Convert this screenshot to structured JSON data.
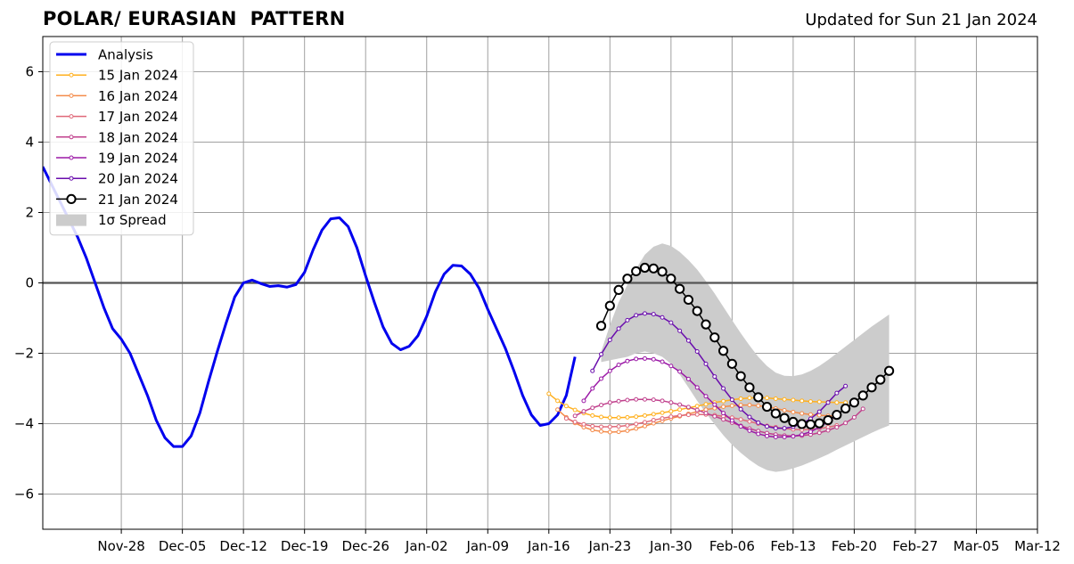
{
  "header": {
    "title": "POLAR/ EURASIAN  PATTERN",
    "subtitle": "Updated for Sun 21 Jan 2024"
  },
  "chart_data": {
    "type": "line",
    "title": "POLAR/ EURASIAN  PATTERN",
    "subtitle": "Updated for Sun 21 Jan 2024",
    "xlabel": "",
    "ylabel": "",
    "x_axis": {
      "type": "date",
      "range": [
        "2023-11-19",
        "2024-03-12"
      ],
      "ticks": [
        "2023-11-28",
        "2023-12-05",
        "2023-12-12",
        "2023-12-19",
        "2023-12-26",
        "2024-01-02",
        "2024-01-09",
        "2024-01-16",
        "2024-01-23",
        "2024-01-30",
        "2024-02-06",
        "2024-02-13",
        "2024-02-20",
        "2024-02-27",
        "2024-03-05",
        "2024-03-12"
      ],
      "tick_labels": [
        "Nov-28",
        "Dec-05",
        "Dec-12",
        "Dec-19",
        "Dec-26",
        "Jan-02",
        "Jan-09",
        "Jan-16",
        "Jan-23",
        "Jan-30",
        "Feb-06",
        "Feb-13",
        "Feb-20",
        "Feb-27",
        "Mar-05",
        "Mar-12"
      ]
    },
    "ylim": [
      -7,
      7
    ],
    "yticks": [
      -6,
      -4,
      -2,
      0,
      2,
      4,
      6
    ],
    "ytick_labels": [
      "−6",
      "−4",
      "−2",
      "0",
      "2",
      "4",
      "6"
    ],
    "grid": true,
    "zero_line": true,
    "legend_position": "top-left",
    "series": [
      {
        "name": "Analysis",
        "color": "#0000ee",
        "style": "line-thick",
        "start": "2023-11-19",
        "values": [
          3.3,
          2.8,
          2.3,
          1.8,
          1.3,
          0.7,
          0.0,
          -0.7,
          -1.3,
          -1.6,
          -2.0,
          -2.6,
          -3.2,
          -3.9,
          -4.4,
          -4.65,
          -4.65,
          -4.35,
          -3.7,
          -2.8,
          -1.95,
          -1.15,
          -0.4,
          0.0,
          0.08,
          -0.02,
          -0.1,
          -0.08,
          -0.12,
          -0.05,
          0.3,
          0.95,
          1.5,
          1.82,
          1.85,
          1.6,
          1.0,
          0.2,
          -0.55,
          -1.25,
          -1.72,
          -1.9,
          -1.8,
          -1.5,
          -0.95,
          -0.25,
          0.25,
          0.5,
          0.48,
          0.25,
          -0.15,
          -0.75,
          -1.3,
          -1.85,
          -2.5,
          -3.2,
          -3.75,
          -4.05,
          -4.0,
          -3.75,
          -3.2,
          -2.1
        ]
      },
      {
        "name": "15 Jan 2024",
        "color": "#ffb01e",
        "style": "line-small-markers",
        "start": "2024-01-16",
        "values": [
          -3.15,
          -3.35,
          -3.5,
          -3.61,
          -3.7,
          -3.77,
          -3.81,
          -3.83,
          -3.83,
          -3.82,
          -3.8,
          -3.77,
          -3.73,
          -3.69,
          -3.65,
          -3.6,
          -3.55,
          -3.5,
          -3.45,
          -3.4,
          -3.36,
          -3.32,
          -3.29,
          -3.27,
          -3.26,
          -3.27,
          -3.29,
          -3.31,
          -3.33,
          -3.35,
          -3.37,
          -3.38,
          -3.39,
          -3.4,
          -3.4
        ]
      },
      {
        "name": "16 Jan 2024",
        "color": "#f48b4a",
        "style": "line-small-markers",
        "start": "2024-01-17",
        "values": [
          -3.6,
          -3.82,
          -3.98,
          -4.1,
          -4.18,
          -4.22,
          -4.24,
          -4.23,
          -4.2,
          -4.14,
          -4.07,
          -3.99,
          -3.92,
          -3.85,
          -3.79,
          -3.72,
          -3.66,
          -3.6,
          -3.56,
          -3.52,
          -3.49,
          -3.47,
          -3.47,
          -3.49,
          -3.52,
          -3.57,
          -3.62,
          -3.67,
          -3.71,
          -3.74,
          -3.76,
          -3.78,
          -3.78
        ]
      },
      {
        "name": "17 Jan 2024",
        "color": "#e06878",
        "style": "line-small-markers",
        "start": "2024-01-18",
        "values": [
          -3.85,
          -3.95,
          -4.02,
          -4.07,
          -4.09,
          -4.09,
          -4.08,
          -4.05,
          -4.01,
          -3.96,
          -3.9,
          -3.85,
          -3.8,
          -3.77,
          -3.75,
          -3.74,
          -3.74,
          -3.76,
          -3.79,
          -3.83,
          -3.88,
          -3.94,
          -4.0,
          -4.06,
          -4.1,
          -4.14,
          -4.16,
          -4.17,
          -4.16,
          -4.14,
          -4.1,
          -4.05
        ]
      },
      {
        "name": "18 Jan 2024",
        "color": "#c0408c",
        "style": "line-small-markers",
        "start": "2024-01-19",
        "values": [
          -3.78,
          -3.65,
          -3.55,
          -3.47,
          -3.4,
          -3.36,
          -3.33,
          -3.31,
          -3.31,
          -3.32,
          -3.35,
          -3.4,
          -3.46,
          -3.53,
          -3.61,
          -3.7,
          -3.79,
          -3.88,
          -3.97,
          -4.06,
          -4.14,
          -4.21,
          -4.27,
          -4.31,
          -4.34,
          -4.35,
          -4.34,
          -4.31,
          -4.26,
          -4.19,
          -4.1,
          -3.98,
          -3.82,
          -3.58
        ]
      },
      {
        "name": "19 Jan 2024",
        "color": "#9b18a6",
        "style": "line-small-markers",
        "start": "2024-01-20",
        "values": [
          -3.35,
          -3.0,
          -2.72,
          -2.5,
          -2.33,
          -2.22,
          -2.16,
          -2.15,
          -2.17,
          -2.24,
          -2.36,
          -2.52,
          -2.73,
          -2.97,
          -3.22,
          -3.46,
          -3.7,
          -3.91,
          -4.08,
          -4.2,
          -4.29,
          -4.35,
          -4.38,
          -4.38,
          -4.36,
          -4.31,
          -4.23,
          -4.1,
          -3.95,
          -3.75
        ]
      },
      {
        "name": "20 Jan 2024",
        "color": "#6a0dad",
        "style": "line-small-markers",
        "start": "2024-01-21",
        "values": [
          -2.5,
          -2.03,
          -1.62,
          -1.3,
          -1.06,
          -0.92,
          -0.87,
          -0.89,
          -0.98,
          -1.13,
          -1.36,
          -1.64,
          -1.95,
          -2.3,
          -2.66,
          -3.0,
          -3.32,
          -3.59,
          -3.81,
          -3.97,
          -4.08,
          -4.13,
          -4.13,
          -4.09,
          -4.0,
          -3.86,
          -3.66,
          -3.4,
          -3.13,
          -2.93
        ]
      },
      {
        "name": "21 Jan 2024",
        "color": "#000000",
        "style": "line-large-markers",
        "start": "2024-01-22",
        "values": [
          -1.22,
          -0.65,
          -0.2,
          0.12,
          0.33,
          0.43,
          0.41,
          0.32,
          0.12,
          -0.17,
          -0.48,
          -0.8,
          -1.18,
          -1.55,
          -1.93,
          -2.3,
          -2.65,
          -2.97,
          -3.25,
          -3.52,
          -3.71,
          -3.84,
          -3.95,
          -4.01,
          -4.02,
          -3.99,
          -3.9,
          -3.75,
          -3.57,
          -3.4,
          -3.2,
          -2.97,
          -2.75,
          -2.5
        ]
      },
      {
        "name": "1σ Spread",
        "color": "#cccccc",
        "style": "band",
        "start": "2024-01-22",
        "upper": [
          -1.95,
          -1.2,
          -0.55,
          -0.05,
          0.4,
          0.8,
          1.03,
          1.12,
          1.05,
          0.88,
          0.65,
          0.38,
          0.05,
          -0.3,
          -0.68,
          -1.06,
          -1.43,
          -1.78,
          -2.1,
          -2.36,
          -2.55,
          -2.64,
          -2.65,
          -2.6,
          -2.5,
          -2.36,
          -2.19,
          -2.0,
          -1.81,
          -1.62,
          -1.43,
          -1.24,
          -1.07,
          -0.9
        ],
        "lower": [
          -2.25,
          -2.2,
          -2.15,
          -2.1,
          -2.0,
          -1.95,
          -2.0,
          -2.1,
          -2.3,
          -2.6,
          -2.97,
          -3.35,
          -3.7,
          -4.02,
          -4.33,
          -4.6,
          -4.83,
          -5.03,
          -5.2,
          -5.32,
          -5.37,
          -5.34,
          -5.27,
          -5.19,
          -5.09,
          -4.98,
          -4.87,
          -4.74,
          -4.62,
          -4.5,
          -4.38,
          -4.26,
          -4.15,
          -4.05
        ]
      }
    ]
  }
}
